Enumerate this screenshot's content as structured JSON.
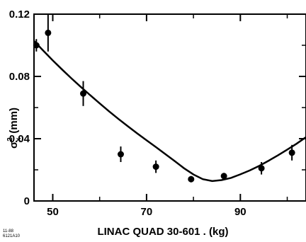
{
  "chart_data": {
    "type": "scatter",
    "title": "",
    "xlabel": "LINAC QUAD 30-601 . (kg)",
    "ylabel_main": "σ",
    "ylabel_sup": "2",
    "ylabel_sub": "x",
    "ylabel_unit": "(mm)",
    "xlim": [
      46,
      104
    ],
    "ylim": [
      0,
      0.12
    ],
    "x_ticks": [
      50,
      70,
      90
    ],
    "x_tick_labels": [
      "50",
      "70",
      "90"
    ],
    "y_ticks": [
      0,
      0.04,
      0.08,
      0.12
    ],
    "y_tick_labels": [
      "0",
      "0.04",
      "0.08",
      "0.12"
    ],
    "grid": false,
    "points": [
      {
        "x": 46.5,
        "y": 0.1,
        "err": 0.004
      },
      {
        "x": 49.0,
        "y": 0.108,
        "err": 0.012
      },
      {
        "x": 56.5,
        "y": 0.069,
        "err": 0.008
      },
      {
        "x": 64.5,
        "y": 0.03,
        "err": 0.005
      },
      {
        "x": 72.0,
        "y": 0.022,
        "err": 0.004
      },
      {
        "x": 79.5,
        "y": 0.014,
        "err": 0.002
      },
      {
        "x": 86.5,
        "y": 0.016,
        "err": 0.002
      },
      {
        "x": 94.5,
        "y": 0.021,
        "err": 0.004
      },
      {
        "x": 101.0,
        "y": 0.031,
        "err": 0.005
      }
    ],
    "fit_curve": {
      "x": [
        46,
        48,
        50,
        52,
        54,
        56,
        58,
        60,
        62,
        64,
        66,
        68,
        70,
        72,
        74,
        76,
        78,
        80,
        82,
        84,
        86,
        88,
        90,
        92,
        94,
        96,
        98,
        100,
        102,
        104
      ],
      "y": [
        0.1028,
        0.0965,
        0.0903,
        0.0844,
        0.0787,
        0.0732,
        0.0679,
        0.0627,
        0.0576,
        0.0527,
        0.048,
        0.0434,
        0.039,
        0.0346,
        0.0301,
        0.0256,
        0.021,
        0.017,
        0.014,
        0.0128,
        0.0134,
        0.0148,
        0.0171,
        0.0196,
        0.0225,
        0.0258,
        0.0293,
        0.033,
        0.0368,
        0.041
      ]
    }
  },
  "corner_note": [
    "11-88",
    "6121A10"
  ]
}
